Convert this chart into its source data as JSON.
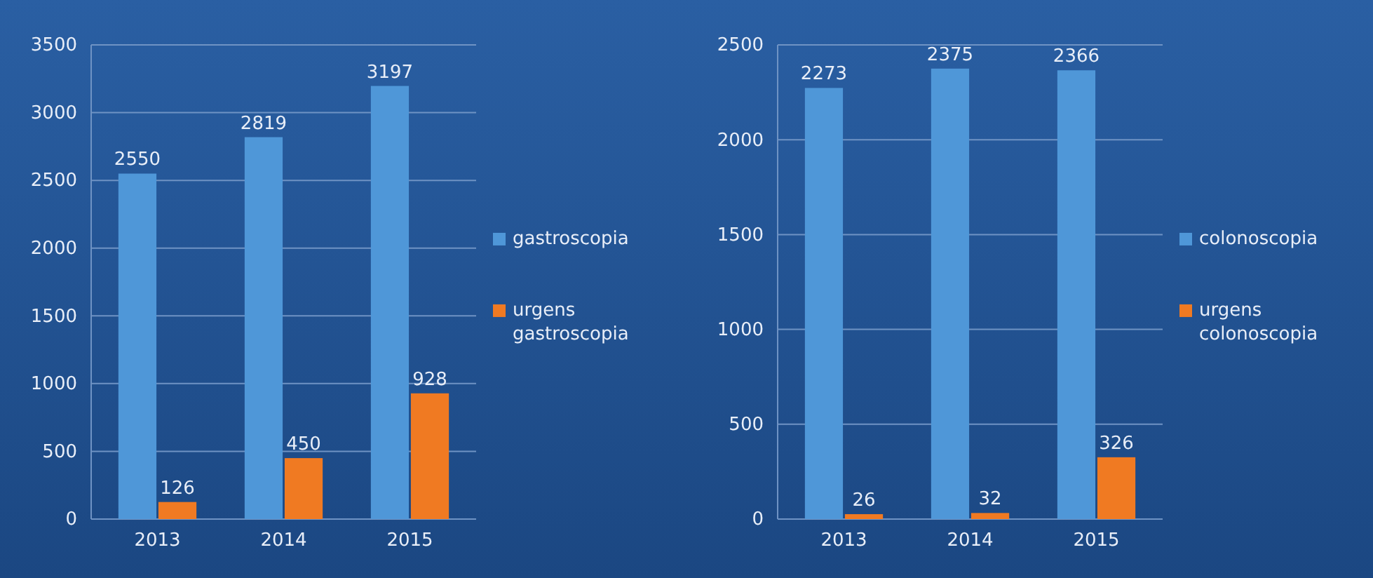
{
  "chart_data": [
    {
      "type": "bar",
      "categories": [
        "2013",
        "2014",
        "2015"
      ],
      "series": [
        {
          "name": "gastroscopia",
          "color": "#4f97d8",
          "values": [
            2550,
            2819,
            3197
          ]
        },
        {
          "name": "urgens gastroscopia",
          "color": "#f07a22",
          "values": [
            126,
            450,
            928
          ]
        }
      ],
      "ylim": [
        0,
        3500
      ],
      "yticks": [
        0,
        500,
        1000,
        1500,
        2000,
        2500,
        3000,
        3500
      ],
      "grid": "y",
      "legend": "right",
      "data_labels": true
    },
    {
      "type": "bar",
      "categories": [
        "2013",
        "2014",
        "2015"
      ],
      "series": [
        {
          "name": "colonoscopia",
          "color": "#4f97d8",
          "values": [
            2273,
            2375,
            2366
          ]
        },
        {
          "name": "urgens colonoscopia",
          "color": "#f07a22",
          "values": [
            26,
            32,
            326
          ]
        }
      ],
      "ylim": [
        0,
        2500
      ],
      "yticks": [
        0,
        500,
        1000,
        1500,
        2000,
        2500
      ],
      "grid": "y",
      "legend": "right",
      "data_labels": true
    }
  ]
}
